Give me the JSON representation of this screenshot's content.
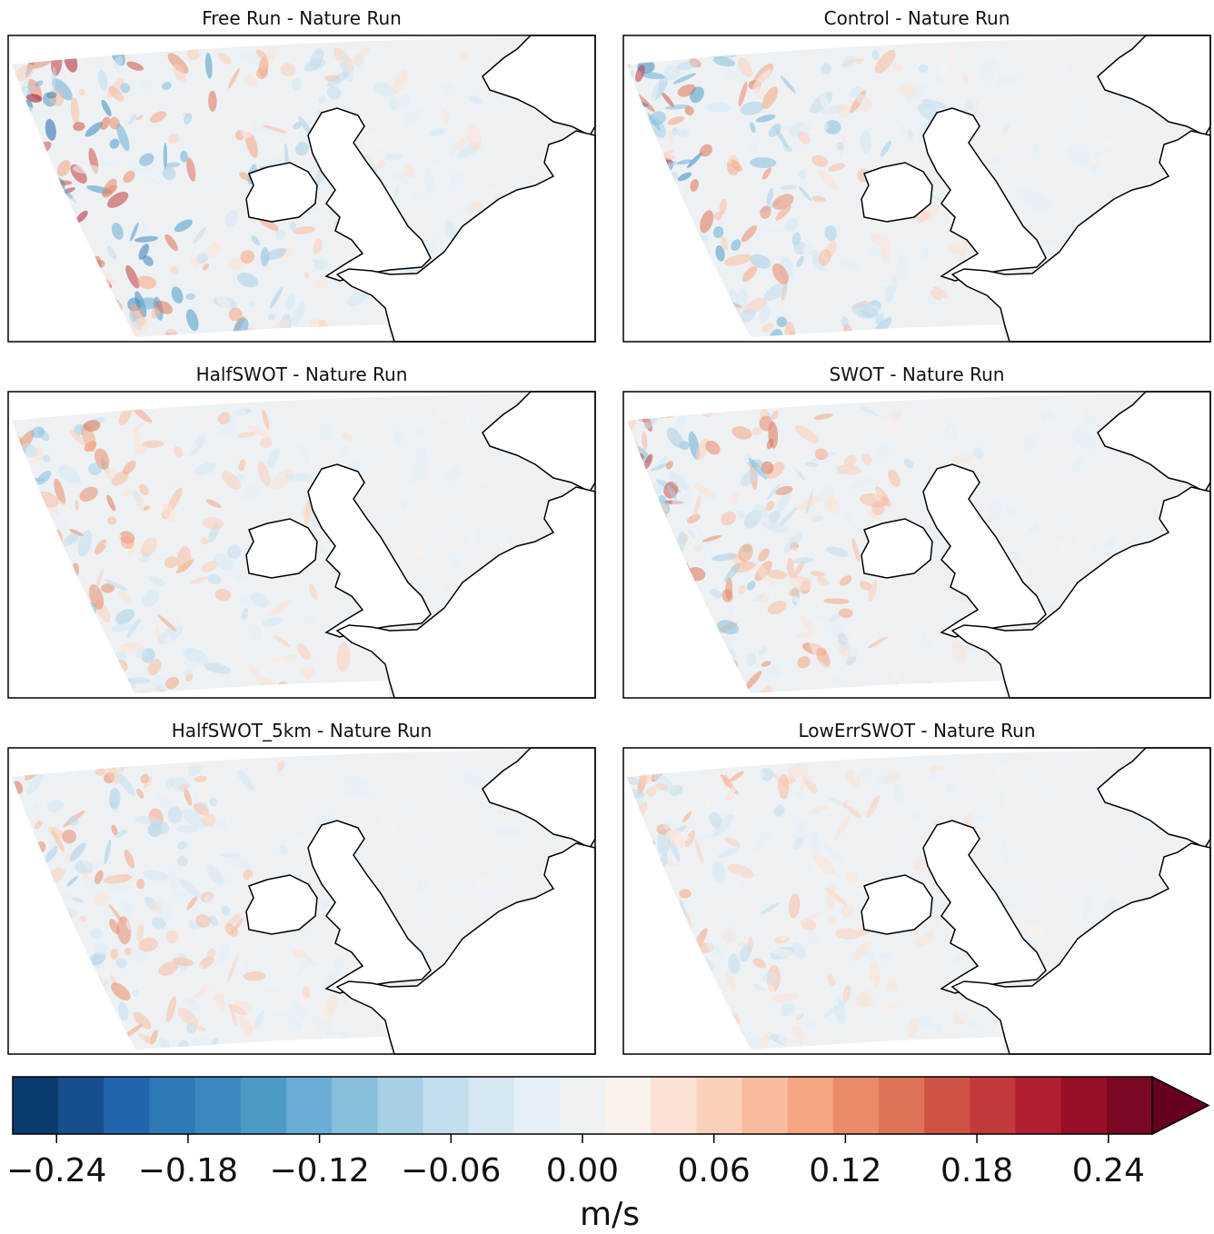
{
  "chart_data": {
    "type": "map-panels",
    "panels": [
      {
        "title": "Free Run - Nature Run"
      },
      {
        "title": "Control - Nature Run"
      },
      {
        "title": "HalfSWOT - Nature Run"
      },
      {
        "title": "SWOT - Nature Run"
      },
      {
        "title": "HalfSWOT_5km - Nature Run"
      },
      {
        "title": "LowErrSWOT - Nature Run"
      }
    ],
    "colorbar": {
      "label": "m/s",
      "clim": [
        -0.26,
        0.26
      ],
      "extend": "max",
      "colors": [
        "#0b3c70",
        "#174f8e",
        "#2166ac",
        "#2f79b5",
        "#3b89c0",
        "#4d9ac7",
        "#6aadd5",
        "#87bfdd",
        "#a7cfe5",
        "#c2ddec",
        "#d6e8f2",
        "#e6eff6",
        "#eef2f5",
        "#f8f1ec",
        "#fbe1d4",
        "#fbd0b9",
        "#f8bb9e",
        "#f4a582",
        "#ea8b6a",
        "#de7256",
        "#cf5246",
        "#c23a3c",
        "#b01f31",
        "#960f27",
        "#7a0822"
      ],
      "over_color": "#67001f",
      "ticks": [
        {
          "value": -0.24,
          "label": "−0.24"
        },
        {
          "value": -0.18,
          "label": "−0.18"
        },
        {
          "value": -0.12,
          "label": "−0.12"
        },
        {
          "value": -0.06,
          "label": "−0.06"
        },
        {
          "value": 0,
          "label": "0.00"
        },
        0.06,
        0.12,
        0.18,
        0.24
      ]
    }
  }
}
